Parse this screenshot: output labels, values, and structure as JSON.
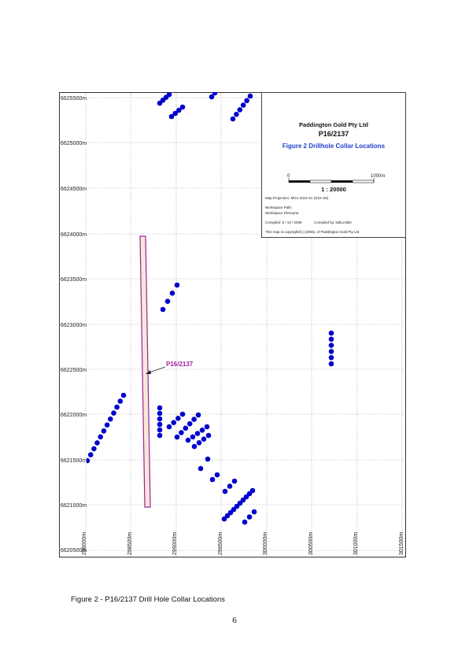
{
  "map": {
    "y_ticks": [
      "6625500m",
      "6625000m",
      "6624500m",
      "6624000m",
      "6623500m",
      "6623000m",
      "6622500m",
      "6622000m",
      "6621500m",
      "6621000m",
      "6620500m"
    ],
    "x_ticks": [
      "298000m",
      "298500m",
      "299000m",
      "299500m",
      "300000m",
      "300500m",
      "301000m",
      "301500m"
    ],
    "tenement_label": "P16/2137",
    "tenement_color": "#a0209a",
    "tenement_fill": "#f6e8d8",
    "collar_color": "#0000cc",
    "collar_icon": "filled-circle"
  },
  "info_box": {
    "company": "Paddington Gold Pty Ltd",
    "tenement": "P16/2137",
    "figure_title": "Figure 2 Drillhole Collar Locations",
    "title_color": "#1f3fd0",
    "scale_start": "0",
    "scale_end": "1000m",
    "scale_ratio": "1 : 20000",
    "projection": "Map Projection: MGA Zone 51 (GDA 94)",
    "workspace_path": "Workspace Path:",
    "workspace_filename": "Workspace Filename:",
    "compiled_date": "Compiled: 9 / 10 / 2006",
    "compiled_by": "Compiled by: kaltLmliter",
    "copyright": "This map is copyright(C) (2006), of Paddington Gold Pty Ltd"
  },
  "caption": "Figure 2 - P16/2137 Drill Hole Collar Locations",
  "page_number": "6"
}
